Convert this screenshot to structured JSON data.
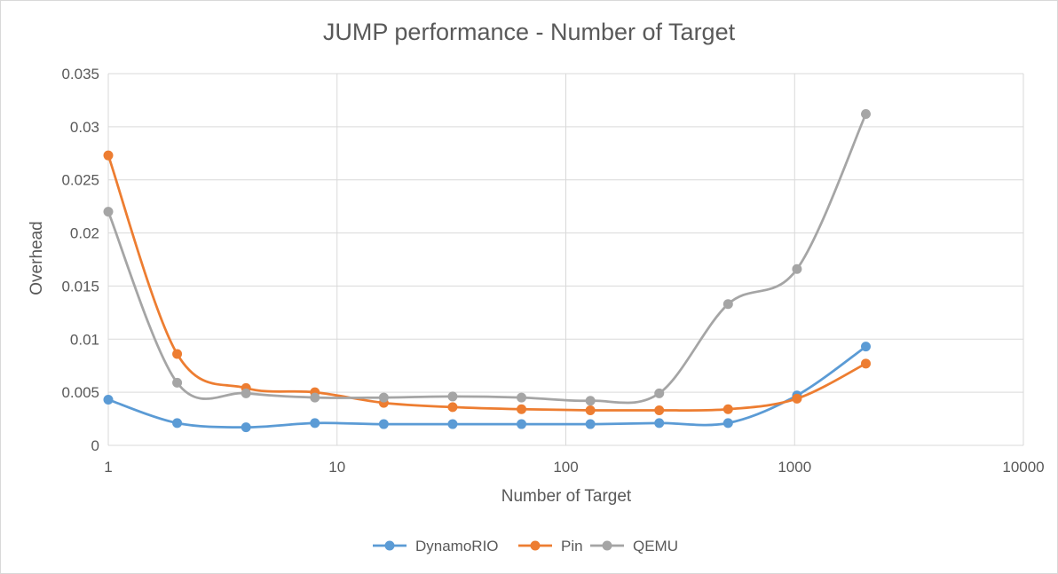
{
  "chart_data": {
    "type": "scatter",
    "title": "JUMP performance - Number of Target",
    "xlabel": "Number of Target",
    "ylabel": "Overhead",
    "x_scale": "log",
    "xlim": [
      1,
      10000
    ],
    "ylim": [
      0,
      0.035
    ],
    "x_ticks": [
      "1",
      "10",
      "100",
      "1000",
      "10000"
    ],
    "y_ticks": [
      "0",
      "0.005",
      "0.01",
      "0.015",
      "0.02",
      "0.025",
      "0.03",
      "0.035"
    ],
    "grid": true,
    "legend": "bottom",
    "x": [
      1,
      2,
      4,
      8,
      16,
      32,
      64,
      128,
      256,
      512,
      1024,
      2048
    ],
    "series": [
      {
        "name": "DynamoRIO",
        "color": "#5b9bd5",
        "values": [
          0.0043,
          0.0021,
          0.0017,
          0.0021,
          0.002,
          0.002,
          0.002,
          0.002,
          0.0021,
          0.0021,
          0.0047,
          0.0093
        ]
      },
      {
        "name": "Pin",
        "color": "#ed7d31",
        "values": [
          0.0273,
          0.0086,
          0.0054,
          0.005,
          0.004,
          0.0036,
          0.0034,
          0.0033,
          0.0033,
          0.0034,
          0.0044,
          0.0077
        ]
      },
      {
        "name": "QEMU",
        "color": "#a5a5a5",
        "values": [
          0.022,
          0.0059,
          0.0049,
          0.0045,
          0.0045,
          0.0046,
          0.0045,
          0.0042,
          0.0049,
          0.0133,
          0.0166,
          0.0312
        ]
      }
    ]
  }
}
